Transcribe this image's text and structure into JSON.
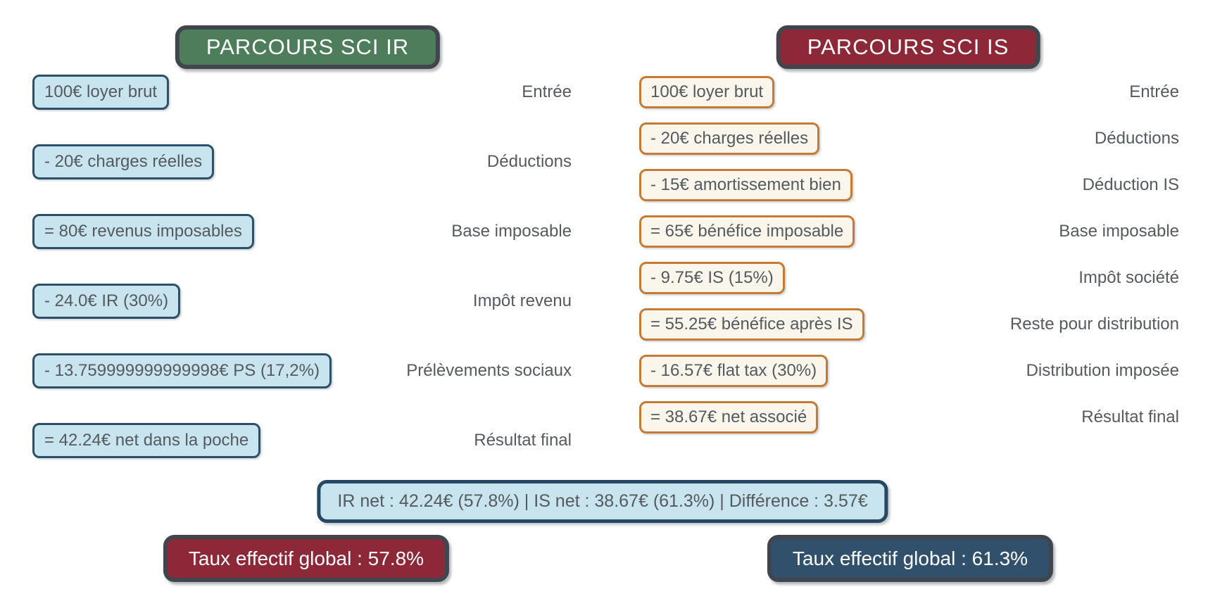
{
  "ir": {
    "header": "PARCOURS SCI IR",
    "steps": [
      {
        "box": "100€ loyer brut",
        "label": "Entrée"
      },
      {
        "box": "- 20€ charges réelles",
        "label": "Déductions"
      },
      {
        "box": "= 80€ revenus imposables",
        "label": "Base imposable"
      },
      {
        "box": "- 24.0€ IR (30%)",
        "label": "Impôt revenu"
      },
      {
        "box": "- 13.759999999999998€ PS (17,2%)",
        "label": "Prélèvements sociaux"
      },
      {
        "box": "= 42.24€ net dans la poche",
        "label": "Résultat final"
      }
    ],
    "footer": "Taux effectif global : 57.8%"
  },
  "is": {
    "header": "PARCOURS SCI IS",
    "steps": [
      {
        "box": "100€ loyer brut",
        "label": "Entrée"
      },
      {
        "box": "- 20€ charges réelles",
        "label": "Déductions"
      },
      {
        "box": "- 15€ amortissement bien",
        "label": "Déduction IS"
      },
      {
        "box": "= 65€ bénéfice imposable",
        "label": "Base imposable"
      },
      {
        "box": "- 9.75€ IS (15%)",
        "label": "Impôt société"
      },
      {
        "box": "= 55.25€ bénéfice après IS",
        "label": "Reste pour distribution"
      },
      {
        "box": "- 16.57€ flat tax (30%)",
        "label": "Distribution imposée"
      },
      {
        "box": "= 38.67€ net associé",
        "label": "Résultat final"
      }
    ],
    "footer": "Taux effectif global : 61.3%"
  },
  "summary": "IR net : 42.24€ (57.8%) | IS net : 38.67€ (61.3%) | Différence : 3.57€",
  "colors": {
    "green": "#4e7d5c",
    "maroon": "#8d2839",
    "slate": "#31506b",
    "frame": "#41464e",
    "navy": "#2d5069",
    "deepnavy": "#264862",
    "lightblue": "#c8e4ee",
    "cream": "#faf6ec",
    "orange": "#c67b35",
    "text": "#555a5f"
  }
}
